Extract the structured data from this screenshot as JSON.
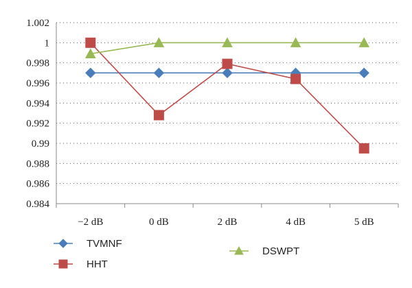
{
  "chart_data": {
    "type": "line",
    "categories": [
      "−2 dB",
      "0 dB",
      "2 dB",
      "4 dB",
      "5 dB"
    ],
    "y_ticks": [
      "0.984",
      "0.986",
      "0.988",
      "0.99",
      "0.992",
      "0.994",
      "0.996",
      "0.998",
      "1",
      "1.002"
    ],
    "ylim": [
      0.984,
      1.002
    ],
    "grid": "horizontal dotted",
    "legend_placement": "bottom",
    "series": [
      {
        "name": "TVMNF",
        "values": [
          0.997,
          0.997,
          0.997,
          0.997,
          0.997
        ],
        "color": "#4a7ebb",
        "marker": "diamond"
      },
      {
        "name": "HHT",
        "values": [
          1.0,
          0.9928,
          0.9979,
          0.9964,
          0.9895
        ],
        "color": "#be4b48",
        "marker": "square"
      },
      {
        "name": "DSWPT",
        "values": [
          0.9989,
          1.0,
          1.0,
          1.0,
          1.0
        ],
        "color": "#98b954",
        "marker": "triangle"
      }
    ]
  }
}
